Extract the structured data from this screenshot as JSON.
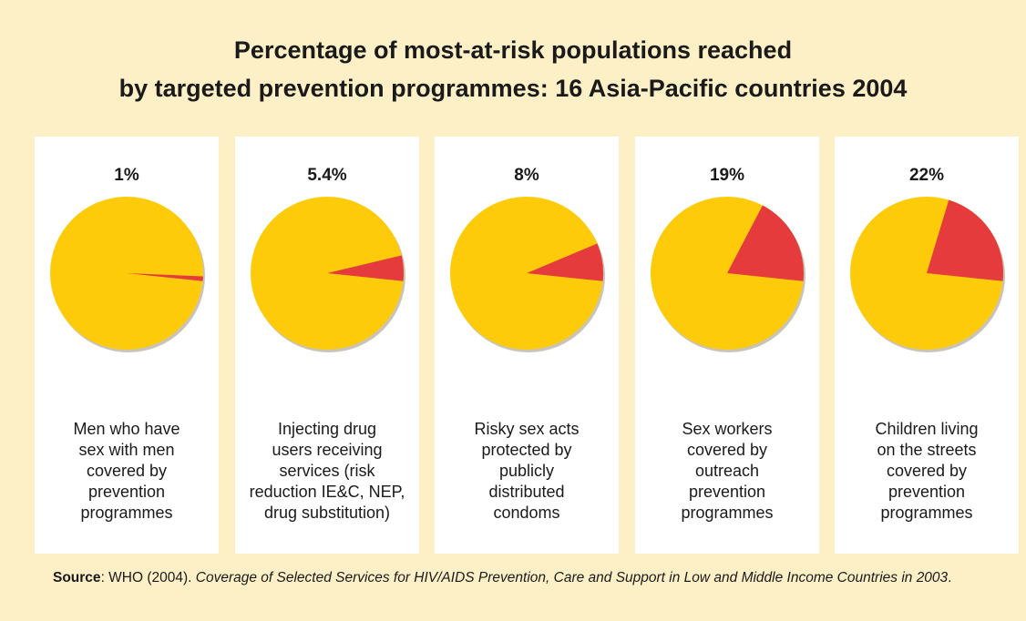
{
  "title": {
    "line1": "Percentage of most-at-risk populations reached",
    "line2": "by targeted prevention programmes: 16 Asia-Pacific countries 2004"
  },
  "source": {
    "label": "Source",
    "text": ": WHO (2004). ",
    "italic": "Coverage of Selected Services for HIV/AIDS Prevention, Care and Support in Low and Middle Income Countries in 2003",
    "end": "."
  },
  "colors": {
    "background": "#fdf0c6",
    "pie_main": "#fecb0a",
    "pie_slice": "#e53b3c",
    "shadow": "#c9c4ba"
  },
  "chart_data": [
    {
      "type": "pie",
      "title": "1%",
      "value": 1,
      "category": "Men who have sex with men covered by prevention programmes",
      "label_lines": [
        "Men who have",
        "sex with men",
        "covered by",
        "prevention",
        "programmes"
      ]
    },
    {
      "type": "pie",
      "title": "5.4%",
      "value": 5.4,
      "category": "Injecting drug users receiving services (risk reduction IE&C, NEP, drug substitution)",
      "label_lines": [
        "Injecting drug",
        "users receiving",
        "services (risk",
        "reduction IE&C, NEP,",
        "drug substitution)"
      ]
    },
    {
      "type": "pie",
      "title": "8%",
      "value": 8,
      "category": "Risky sex acts protected by publicly distributed condoms",
      "label_lines": [
        "Risky sex acts",
        "protected by",
        "publicly",
        "distributed",
        "condoms"
      ]
    },
    {
      "type": "pie",
      "title": "19%",
      "value": 19,
      "category": "Sex workers covered by outreach prevention programmes",
      "label_lines": [
        "Sex workers",
        "covered by",
        "outreach",
        "prevention",
        "programmes"
      ]
    },
    {
      "type": "pie",
      "title": "22%",
      "value": 22,
      "category": "Children living on the streets covered by prevention programmes",
      "label_lines": [
        "Children living",
        "on the streets",
        "covered by",
        "prevention",
        "programmes"
      ]
    }
  ]
}
